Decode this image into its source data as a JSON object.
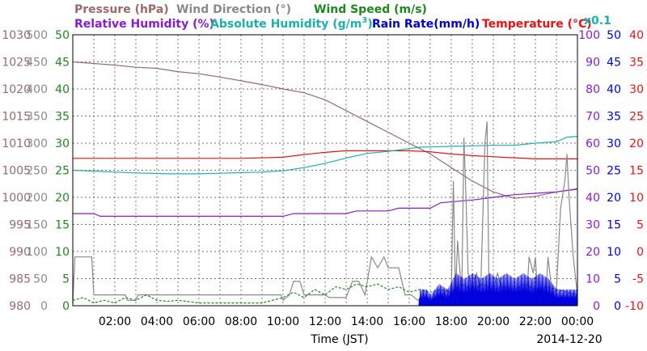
{
  "colors": {
    "pressure": "#9b6a6a",
    "wind_direction": "#8a8a8a",
    "wind_speed": "#1b8a1b",
    "relative_humidity": "#8a1ad8",
    "absolute_humidity": "#1ab0b0",
    "rain_rate": "#0000dd",
    "temperature": "#ee1111",
    "grid": "#444444"
  },
  "legend": {
    "pressure": "Pressure (hPa)",
    "wind_direction": "Wind Direction (°)",
    "wind_speed": "Wind Speed (m/s)",
    "relative_humidity": "Relative Humidity (%)",
    "absolute_humidity_prefix": "Absolute Humidity (g/m",
    "absolute_humidity_sup": "3",
    "absolute_humidity_suffix": ")",
    "rain_rate": "Rain Rate(mm/h)",
    "temperature": "Temperature (°C)",
    "abs_multiplier": "x0.1"
  },
  "axes": {
    "pressure_ticks": [
      "1030",
      "1025",
      "1020",
      "1015",
      "1010",
      "1005",
      "1000",
      "995",
      "990",
      "985",
      "980"
    ],
    "wind_direction_ticks": [
      "500",
      "450",
      "400",
      "350",
      "300",
      "250",
      "200",
      "150",
      "100",
      "50",
      "0"
    ],
    "wind_speed_ticks": [
      "50",
      "45",
      "40",
      "35",
      "30",
      "25",
      "20",
      "15",
      "10",
      "5",
      "0"
    ],
    "humidity_ticks": [
      "100",
      "90",
      "80",
      "70",
      "60",
      "50",
      "40",
      "30",
      "20",
      "10",
      "0"
    ],
    "rain_ticks": [
      "50",
      "45",
      "40",
      "35",
      "30",
      "25",
      "20",
      "15",
      "10",
      "5",
      "0"
    ],
    "temperature_ticks": [
      "40",
      "35",
      "30",
      "25",
      "20",
      "15",
      "10",
      "5",
      "0",
      "-5",
      "-10"
    ],
    "x_ticks": [
      "02:00",
      "04:00",
      "06:00",
      "08:00",
      "10:00",
      "12:00",
      "14:00",
      "16:00",
      "18:00",
      "20:00",
      "22:00",
      "00:00"
    ],
    "xlabel": "Time (JST)",
    "date": "2014-12-20"
  },
  "chart_data": {
    "type": "line",
    "x_unit": "hours since 00:00 JST",
    "x_range": [
      0,
      24
    ],
    "grid": true,
    "series": [
      {
        "name": "Pressure (hPa)",
        "axis": "pressure",
        "range": [
          980,
          1030
        ],
        "points": [
          [
            0,
            1025
          ],
          [
            1,
            1024.7
          ],
          [
            2,
            1024.4
          ],
          [
            3,
            1024.0
          ],
          [
            4,
            1023.8
          ],
          [
            5,
            1023.2
          ],
          [
            6,
            1022.8
          ],
          [
            7,
            1022.2
          ],
          [
            8,
            1021.5
          ],
          [
            9,
            1020.8
          ],
          [
            10,
            1020.0
          ],
          [
            11,
            1019.3
          ],
          [
            12,
            1018.0
          ],
          [
            13,
            1016.0
          ],
          [
            14,
            1014.0
          ],
          [
            15,
            1012.0
          ],
          [
            16,
            1010.0
          ],
          [
            17,
            1008.0
          ],
          [
            18,
            1005.5
          ],
          [
            19,
            1003.0
          ],
          [
            20,
            1001.0
          ],
          [
            21,
            999.8
          ],
          [
            22,
            1000.2
          ],
          [
            23,
            1001.0
          ],
          [
            24,
            1001.6
          ]
        ]
      },
      {
        "name": "Temperature (°C)",
        "axis": "temperature",
        "range": [
          -10,
          40
        ],
        "points": [
          [
            0,
            17.2
          ],
          [
            4,
            17.2
          ],
          [
            8,
            17.2
          ],
          [
            10,
            17.4
          ],
          [
            11,
            17.9
          ],
          [
            12,
            18.3
          ],
          [
            13,
            18.6
          ],
          [
            14,
            18.6
          ],
          [
            15,
            18.6
          ],
          [
            16,
            18.6
          ],
          [
            17,
            18.4
          ],
          [
            18,
            18.0
          ],
          [
            19,
            17.7
          ],
          [
            20,
            17.5
          ],
          [
            21,
            17.3
          ],
          [
            22,
            17.1
          ],
          [
            24,
            17.1
          ]
        ]
      },
      {
        "name": "Absolute Humidity (g/m3) x0.1",
        "axis": "humidity",
        "range": [
          0,
          100
        ],
        "points": [
          [
            0,
            50
          ],
          [
            1.5,
            49.5
          ],
          [
            3,
            49.0
          ],
          [
            4.5,
            48.7
          ],
          [
            6,
            48.7
          ],
          [
            7.5,
            49.0
          ],
          [
            9,
            49.3
          ],
          [
            10,
            49.8
          ],
          [
            11,
            51.0
          ],
          [
            12,
            52.5
          ],
          [
            13,
            54.5
          ],
          [
            14,
            56.2
          ],
          [
            15,
            57.0
          ],
          [
            16,
            58.0
          ],
          [
            16.5,
            58.5
          ],
          [
            17,
            58.6
          ],
          [
            18,
            58.8
          ],
          [
            19,
            59.0
          ],
          [
            20,
            59.2
          ],
          [
            21,
            59.2
          ],
          [
            22,
            60.0
          ],
          [
            23,
            60.5
          ],
          [
            23.5,
            62.2
          ],
          [
            24,
            62.5
          ]
        ]
      },
      {
        "name": "Relative Humidity (%)",
        "axis": "humidity",
        "range": [
          0,
          100
        ],
        "points": [
          [
            0,
            34
          ],
          [
            1,
            34
          ],
          [
            1.3,
            33
          ],
          [
            8,
            33
          ],
          [
            10,
            33
          ],
          [
            10.5,
            34
          ],
          [
            13,
            34
          ],
          [
            13.5,
            35
          ],
          [
            15,
            35
          ],
          [
            15.5,
            36
          ],
          [
            17,
            36
          ],
          [
            17.5,
            38
          ],
          [
            19,
            39
          ],
          [
            20,
            40
          ],
          [
            21,
            41
          ],
          [
            22,
            41.5
          ],
          [
            23,
            42
          ],
          [
            24,
            43
          ]
        ]
      },
      {
        "name": "Wind Direction (°)",
        "axis": "wind_direction",
        "range": [
          0,
          500
        ],
        "points": [
          [
            0,
            5
          ],
          [
            0.1,
            90
          ],
          [
            0.9,
            90
          ],
          [
            1.0,
            20
          ],
          [
            2.5,
            20
          ],
          [
            2.6,
            10
          ],
          [
            3,
            10
          ],
          [
            3.1,
            20
          ],
          [
            9.9,
            20
          ],
          [
            10,
            10
          ],
          [
            10.3,
            20
          ],
          [
            10.5,
            45
          ],
          [
            10.8,
            45
          ],
          [
            11,
            20
          ],
          [
            12,
            20
          ],
          [
            12.2,
            15
          ],
          [
            13,
            15
          ],
          [
            13.3,
            45
          ],
          [
            13.6,
            45
          ],
          [
            13.9,
            20
          ],
          [
            14.2,
            90
          ],
          [
            14.5,
            70
          ],
          [
            14.8,
            90
          ],
          [
            15,
            70
          ],
          [
            15.2,
            70
          ],
          [
            15.5,
            70
          ],
          [
            15.8,
            20
          ],
          [
            16.1,
            20
          ],
          [
            16.4,
            10
          ],
          [
            16.8,
            15
          ],
          [
            17,
            10
          ],
          [
            17.5,
            15
          ],
          [
            17.8,
            30
          ],
          [
            18,
            20
          ],
          [
            18.1,
            230
          ],
          [
            18.2,
            20
          ],
          [
            18.3,
            120
          ],
          [
            18.5,
            20
          ],
          [
            18.6,
            310
          ],
          [
            18.7,
            200
          ],
          [
            18.8,
            60
          ],
          [
            19,
            30
          ],
          [
            19.2,
            60
          ],
          [
            19.4,
            30
          ],
          [
            19.6,
            300
          ],
          [
            19.7,
            340
          ],
          [
            19.8,
            10
          ],
          [
            20,
            30
          ],
          [
            20.2,
            60
          ],
          [
            20.5,
            20
          ],
          [
            20.8,
            10
          ],
          [
            21,
            20
          ],
          [
            21.2,
            25
          ],
          [
            21.6,
            20
          ],
          [
            21.7,
            90
          ],
          [
            21.9,
            60
          ],
          [
            22,
            90
          ],
          [
            22.1,
            20
          ],
          [
            22.3,
            30
          ],
          [
            22.5,
            20
          ],
          [
            22.6,
            90
          ],
          [
            22.8,
            20
          ],
          [
            23,
            30
          ],
          [
            23.2,
            180
          ],
          [
            23.4,
            230
          ],
          [
            23.5,
            280
          ],
          [
            23.6,
            200
          ],
          [
            23.8,
            90
          ],
          [
            24,
            20
          ]
        ]
      },
      {
        "name": "Wind Speed (m/s)",
        "axis": "wind_speed",
        "range": [
          0,
          50
        ],
        "points": [
          [
            0,
            1
          ],
          [
            0.5,
            1.5
          ],
          [
            1,
            0.5
          ],
          [
            1.5,
            1
          ],
          [
            2,
            0.5
          ],
          [
            2.5,
            1.5
          ],
          [
            3,
            1
          ],
          [
            3.5,
            2
          ],
          [
            4,
            1
          ],
          [
            4.5,
            0.8
          ],
          [
            5,
            1
          ],
          [
            6,
            0.5
          ],
          [
            7,
            0.5
          ],
          [
            8,
            0.5
          ],
          [
            9,
            0.5
          ],
          [
            10,
            1.5
          ],
          [
            10.5,
            2.5
          ],
          [
            11,
            1.5
          ],
          [
            11.5,
            3
          ],
          [
            12,
            2
          ],
          [
            12.5,
            3.5
          ],
          [
            13,
            3
          ],
          [
            13.5,
            4
          ],
          [
            14,
            3.5
          ],
          [
            14.5,
            4
          ],
          [
            15,
            3
          ],
          [
            15.5,
            3.5
          ],
          [
            16,
            2.5
          ],
          [
            16.5,
            3
          ],
          [
            17,
            2.5
          ],
          [
            17.5,
            3
          ],
          [
            18,
            2.5
          ],
          [
            18.5,
            4
          ],
          [
            19,
            3
          ],
          [
            19.5,
            4
          ],
          [
            20,
            3
          ],
          [
            20.5,
            3.5
          ],
          [
            21,
            3
          ],
          [
            21.5,
            4
          ],
          [
            22,
            3
          ],
          [
            22.5,
            3.5
          ],
          [
            23,
            3
          ],
          [
            23.5,
            2.5
          ],
          [
            24,
            2
          ]
        ]
      },
      {
        "name": "Rain Rate(mm/h)",
        "axis": "rain",
        "range": [
          0,
          50
        ],
        "start_hour": 16.4,
        "end_hour": 24,
        "points": [
          [
            16.4,
            0
          ],
          [
            16.5,
            3
          ],
          [
            16.8,
            3
          ],
          [
            17.0,
            2
          ],
          [
            17.4,
            4
          ],
          [
            17.8,
            3
          ],
          [
            18.2,
            6
          ],
          [
            18.6,
            5
          ],
          [
            19.0,
            6
          ],
          [
            19.4,
            5
          ],
          [
            19.8,
            6
          ],
          [
            20.2,
            5
          ],
          [
            20.6,
            6
          ],
          [
            21.0,
            5
          ],
          [
            21.4,
            6
          ],
          [
            21.8,
            5
          ],
          [
            22.2,
            6
          ],
          [
            22.6,
            5
          ],
          [
            23.0,
            3
          ],
          [
            23.5,
            3
          ],
          [
            24,
            3
          ]
        ]
      }
    ]
  }
}
